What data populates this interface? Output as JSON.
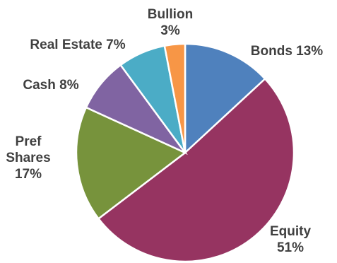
{
  "chart_data": {
    "type": "pie",
    "title": "",
    "start_angle_deg": 0,
    "direction": "clockwise",
    "slices": [
      {
        "name": "Bonds",
        "value": 13,
        "color": "#4F81BD",
        "label_lines": [
          "Bonds  13%"
        ]
      },
      {
        "name": "Equity",
        "value": 51,
        "color": "#963461",
        "label_lines": [
          "Equity",
          "51%"
        ]
      },
      {
        "name": "Pref Shares",
        "value": 17,
        "color": "#77933C",
        "label_lines": [
          "Pref",
          "Shares",
          "17%"
        ]
      },
      {
        "name": "Cash",
        "value": 8,
        "color": "#8064A2",
        "label_lines": [
          "Cash 8%"
        ]
      },
      {
        "name": "Real Estate",
        "value": 7,
        "color": "#4BACC6",
        "label_lines": [
          "Real Estate 7%"
        ]
      },
      {
        "name": "Bullion",
        "value": 3,
        "color": "#F79646",
        "label_lines": [
          "Bullion",
          "3%"
        ]
      }
    ]
  }
}
